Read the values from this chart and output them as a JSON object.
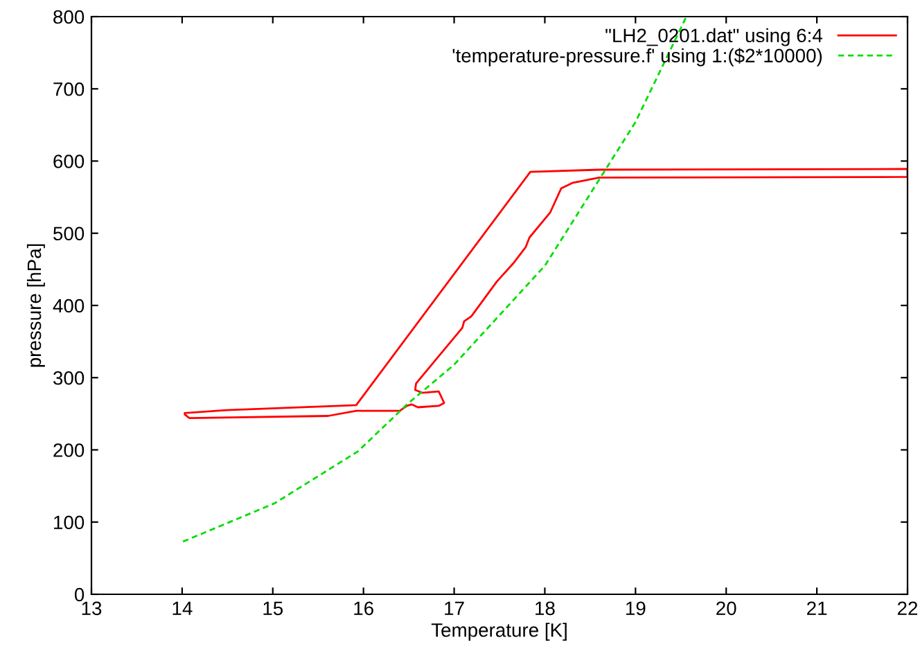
{
  "chart_data": {
    "type": "line",
    "xlabel": "Temperature [K]",
    "ylabel": "pressure [hPa]",
    "xlim": [
      13,
      22
    ],
    "xticks": [
      13,
      14,
      15,
      16,
      17,
      18,
      19,
      20,
      21,
      22
    ],
    "ylim": [
      0,
      800
    ],
    "yticks": [
      0,
      100,
      200,
      300,
      400,
      500,
      600,
      700,
      800
    ],
    "grid": false,
    "legend": "top right",
    "marker": "none",
    "series": [
      {
        "name": "\"LH2_0201.dat\" using 6:4",
        "color": "#ff0000",
        "line_style": "solid",
        "x": [
          14.03,
          14.49,
          15.92,
          17.84,
          18.6,
          22,
          22,
          18.6,
          18.31,
          18.18,
          18.06,
          17.83,
          17.79,
          17.65,
          17.47,
          17.19,
          17.11,
          17.09,
          16.58,
          16.57,
          16.65,
          16.83,
          16.89,
          16.83,
          16.6,
          16.53,
          16.48,
          16.4,
          15.92,
          15.61,
          14.08,
          14.03
        ],
        "values": [
          251,
          255,
          262,
          585,
          588,
          589,
          578,
          577,
          570,
          562,
          529,
          494,
          481,
          458,
          433,
          385,
          378,
          369,
          292,
          283,
          279,
          281,
          265,
          261,
          259,
          263,
          261,
          254,
          254,
          247,
          244,
          249
        ]
      },
      {
        "name": "'temperature-pressure.f' using 1:($2*10000)",
        "color": "#00dd00",
        "line_style": "dashed",
        "x": [
          14.01,
          15.02,
          15.94,
          16.48,
          17,
          18,
          19,
          19.5,
          19.56
        ],
        "values": [
          73,
          126,
          198,
          263,
          318,
          455,
          654,
          784,
          800
        ]
      }
    ]
  }
}
